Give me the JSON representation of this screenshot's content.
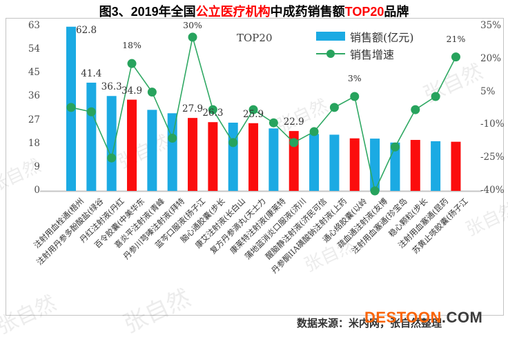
{
  "title": {
    "t1": "图3、2019年全国",
    "t2": "公立医疗机构",
    "t3": "中成药销售额",
    "t4": "TOP20",
    "t5": "品牌"
  },
  "inner_label": "TOP20",
  "legend": {
    "sales": "销售额(亿元)",
    "growth": "销售增速"
  },
  "source": "数据来源：米内网，张自然整理",
  "logo": {
    "part1": "DESTOON",
    "part2": ".COM"
  },
  "watermark": "张自然",
  "palette": {
    "b": "#1baae3",
    "r": "#fb0d0d",
    "line": "#2fa863",
    "marker": "#27a35d",
    "title_red": "#fe0000"
  },
  "chart_data": {
    "type": "bar",
    "title": "2019年全国公立医疗机构中成药销售额TOP20品牌",
    "categories": [
      "注射用血栓通(梧州",
      "注射用丹参多酚酸盐(绿谷",
      "丹红注射液(丹红",
      "百令胶囊(中美华东",
      "喜炎平注射液(青峰",
      "丹参川芎嗪注射液(拜特",
      "蓝芩口服液(扬子江",
      "脑心通胶囊(步长",
      "康艾注射液(长白山",
      "复方丹参滴丸(天士力",
      "康莱特注射液(康莱特",
      "蒲地蓝消炎口服液(济川",
      "醒脑静注射液(济民可信",
      "丹参酮IIA磺酸钠注射液(上药",
      "通心络胶囊(以岭",
      "疏血通注射液(友博",
      "注射用血塞通(珍宝岛",
      "稳心颗粒(步长",
      "注射用血塞通(昆药",
      "苏黄止咳胶囊(扬子江"
    ],
    "series": [
      {
        "name": "销售额(亿元)",
        "type": "bar",
        "values": [
          62.8,
          41.4,
          36.3,
          34.9,
          31.0,
          29.7,
          27.9,
          26.3,
          26.1,
          25.9,
          23.9,
          22.9,
          21.8,
          21.5,
          20.1,
          20.0,
          18.5,
          19.5,
          19.0,
          18.8
        ],
        "colors": [
          "b",
          "b",
          "b",
          "r",
          "b",
          "b",
          "r",
          "r",
          "b",
          "r",
          "b",
          "r",
          "b",
          "b",
          "r",
          "b",
          "b",
          "r",
          "b",
          "r"
        ]
      },
      {
        "name": "销售增速",
        "type": "line",
        "unit": "%",
        "values": [
          -2,
          -4,
          -25,
          18,
          5,
          -16,
          30,
          -3,
          -18,
          -3,
          -9,
          -18,
          -13,
          -2,
          3,
          -40,
          -20,
          -3,
          3,
          21
        ]
      }
    ],
    "bar_value_labels": [
      "62.8",
      "41.4",
      "36.3",
      "34.9",
      null,
      null,
      "27.9",
      "26.3",
      null,
      "25.9",
      null,
      "22.9",
      null,
      null,
      null,
      null,
      null,
      null,
      null,
      null
    ],
    "growth_labels": [
      null,
      null,
      null,
      "18%",
      null,
      null,
      "30%",
      null,
      null,
      null,
      null,
      null,
      null,
      null,
      "3%",
      null,
      null,
      null,
      null,
      "21%"
    ],
    "left_axis": {
      "ticks": [
        63,
        54,
        45,
        36,
        27,
        18,
        9,
        0
      ],
      "min": 0,
      "max": 63
    },
    "right_axis": {
      "ticks": [
        "35%",
        "20%",
        "5%",
        "-10%",
        "-25%",
        "-40%"
      ],
      "min": -40,
      "max": 35
    },
    "grid": false,
    "legend_position": "top-right"
  }
}
